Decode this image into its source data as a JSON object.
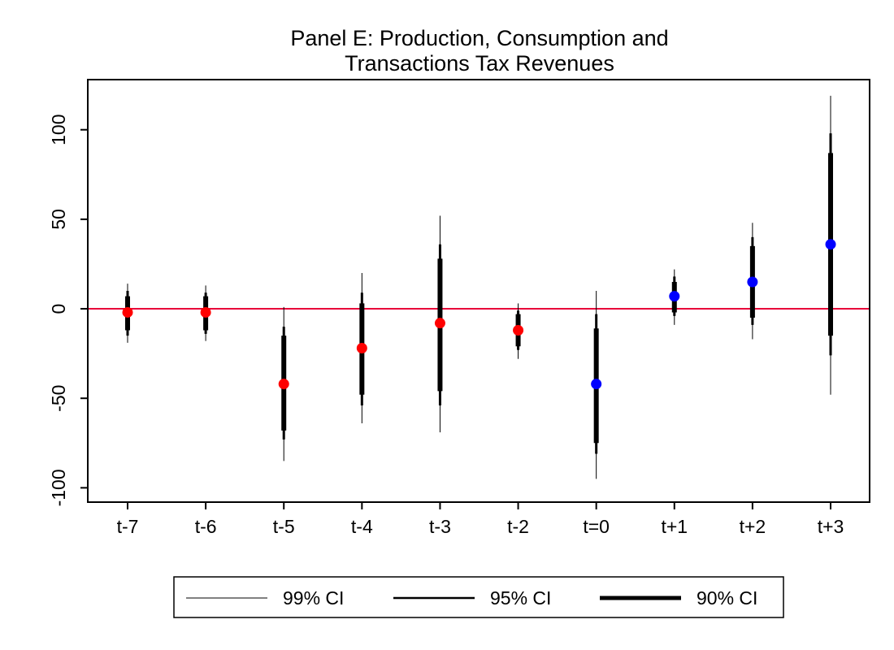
{
  "chart_data": {
    "type": "scatter",
    "title": [
      "Panel E: Production, Consumption and",
      "Transactions Tax Revenues"
    ],
    "xlabel": "",
    "ylabel": "",
    "ylim": [
      -108,
      128
    ],
    "y_ticks": [
      100,
      50,
      0,
      -50,
      -100
    ],
    "y_tick_labels": [
      "100",
      "50",
      "0",
      "-50",
      "-100"
    ],
    "categories": [
      "t-7",
      "t-6",
      "t-5",
      "t-4",
      "t-3",
      "t-2",
      "t=0",
      "t+1",
      "t+2",
      "t+3"
    ],
    "points": [
      {
        "x": "t-7",
        "y": -2,
        "ci99": [
          -19,
          14
        ],
        "ci95": [
          -15,
          10
        ],
        "ci90": [
          -12,
          7
        ],
        "color": "#ff0000"
      },
      {
        "x": "t-6",
        "y": -2,
        "ci99": [
          -18,
          13
        ],
        "ci95": [
          -14,
          9
        ],
        "ci90": [
          -12,
          7
        ],
        "color": "#ff0000"
      },
      {
        "x": "t-5",
        "y": -42,
        "ci99": [
          -85,
          1
        ],
        "ci95": [
          -73,
          -10
        ],
        "ci90": [
          -68,
          -15
        ],
        "color": "#ff0000"
      },
      {
        "x": "t-4",
        "y": -22,
        "ci99": [
          -64,
          20
        ],
        "ci95": [
          -54,
          9
        ],
        "ci90": [
          -48,
          3
        ],
        "color": "#ff0000"
      },
      {
        "x": "t-3",
        "y": -8,
        "ci99": [
          -69,
          52
        ],
        "ci95": [
          -54,
          36
        ],
        "ci90": [
          -46,
          28
        ],
        "color": "#ff0000"
      },
      {
        "x": "t-2",
        "y": -12,
        "ci99": [
          -28,
          3
        ],
        "ci95": [
          -23,
          -1
        ],
        "ci90": [
          -21,
          -3
        ],
        "color": "#ff0000"
      },
      {
        "x": "t=0",
        "y": -42,
        "ci99": [
          -95,
          10
        ],
        "ci95": [
          -81,
          -3
        ],
        "ci90": [
          -75,
          -11
        ],
        "color": "#0000ff"
      },
      {
        "x": "t+1",
        "y": 7,
        "ci99": [
          -9,
          22
        ],
        "ci95": [
          -4,
          18
        ],
        "ci90": [
          -2,
          15
        ],
        "color": "#0000ff"
      },
      {
        "x": "t+2",
        "y": 15,
        "ci99": [
          -17,
          48
        ],
        "ci95": [
          -9,
          40
        ],
        "ci90": [
          -5,
          35
        ],
        "color": "#0000ff"
      },
      {
        "x": "t+3",
        "y": 36,
        "ci99": [
          -48,
          119
        ],
        "ci95": [
          -26,
          98
        ],
        "ci90": [
          -15,
          87
        ],
        "color": "#0000ff"
      }
    ],
    "reference_line": {
      "y": 0,
      "color": "#e8003a"
    },
    "legend": {
      "placement": "bottom",
      "entries": [
        {
          "label": "99% CI",
          "weight": "thin"
        },
        {
          "label": "95% CI",
          "weight": "medium"
        },
        {
          "label": "90% CI",
          "weight": "thick"
        }
      ]
    },
    "grid": false
  }
}
